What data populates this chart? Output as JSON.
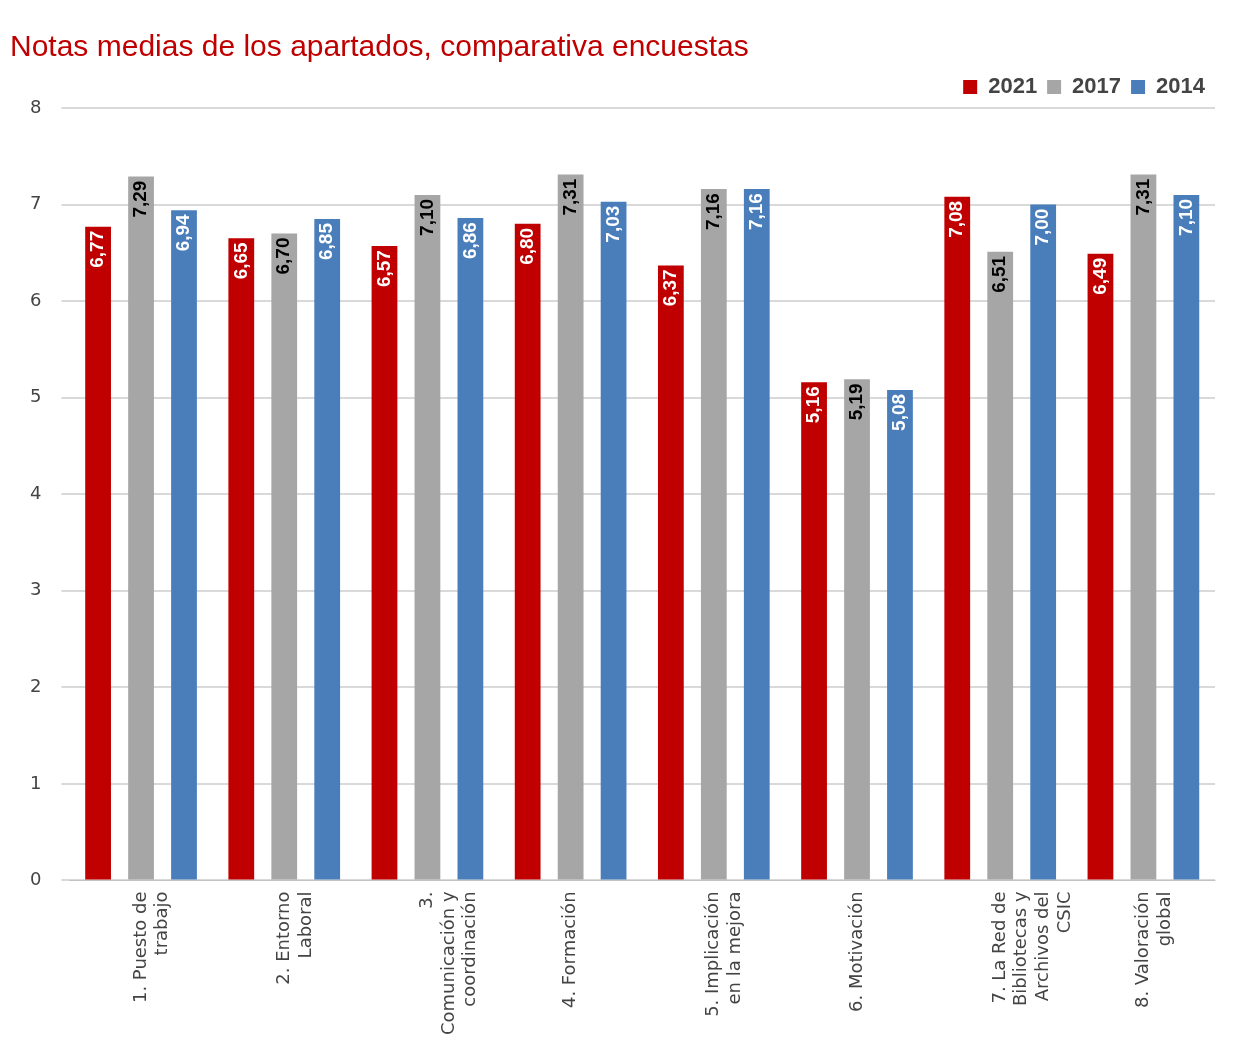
{
  "chart_data": {
    "type": "bar",
    "title": "Notas medias de los apartados, comparativa encuestas",
    "categories": [
      "1. Puesto de trabajo",
      "2. Entorno Laboral",
      "3. Comunicación y coordinación",
      "4. Formación",
      "5. Implicación en la mejora",
      "6. Motivación",
      "7. La Red de Bibliotecas y Archivos del CSIC",
      "8. Valoración global"
    ],
    "series": [
      {
        "name": "2021",
        "color": "#c00000",
        "values": [
          6.77,
          6.65,
          6.57,
          6.8,
          6.37,
          5.16,
          7.08,
          6.49
        ],
        "value_labels": [
          "6,77",
          "6,65",
          "6,57",
          "6,80",
          "6,37",
          "5,16",
          "7,08",
          "6,49"
        ]
      },
      {
        "name": "2017",
        "color": "#a6a6a6",
        "values": [
          7.29,
          6.7,
          7.1,
          7.31,
          7.16,
          5.19,
          6.51,
          7.31
        ],
        "value_labels": [
          "7,29",
          "6,70",
          "7,10",
          "7,31",
          "7,16",
          "5,19",
          "6,51",
          "7,31"
        ]
      },
      {
        "name": "2014",
        "color": "#4a7ebb",
        "values": [
          6.94,
          6.85,
          6.86,
          7.03,
          7.16,
          5.08,
          7.0,
          7.1
        ],
        "value_labels": [
          "6,94",
          "6,85",
          "6,86",
          "7,03",
          "7,16",
          "5,08",
          "7,00",
          "7,10"
        ]
      }
    ],
    "ylim": [
      0,
      8
    ],
    "yticks": [
      0,
      1,
      2,
      3,
      4,
      5,
      6,
      7,
      8
    ],
    "grid": "y",
    "legend": "top right"
  }
}
